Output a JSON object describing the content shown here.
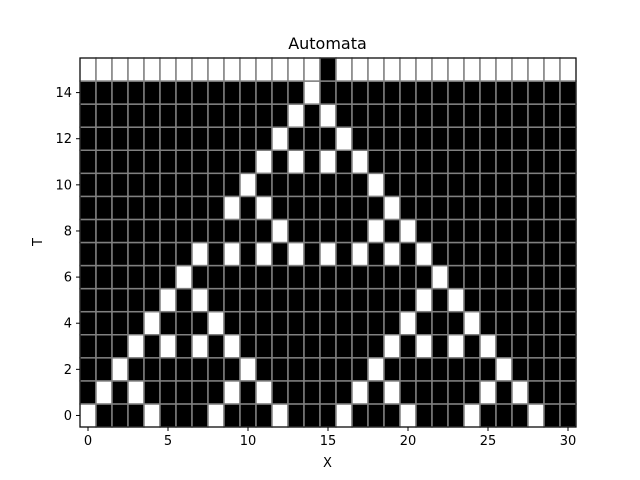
{
  "chart_data": {
    "type": "heatmap",
    "title": "Automata",
    "xlabel": "X",
    "ylabel": "T",
    "x_ticks": [
      0,
      5,
      10,
      15,
      20,
      25,
      30
    ],
    "y_ticks": [
      0,
      2,
      4,
      6,
      8,
      10,
      12,
      14
    ],
    "xlim": [
      -0.5,
      30.5
    ],
    "ylim": [
      -0.5,
      15.5
    ],
    "cell_colors": {
      "0": "#000000",
      "1": "#ffffff"
    },
    "grid_color": "#808080",
    "grid": [
      [
        1,
        0,
        0,
        0,
        1,
        0,
        0,
        0,
        1,
        0,
        0,
        0,
        1,
        0,
        0,
        0,
        1,
        0,
        0,
        0,
        1,
        0,
        0,
        0,
        1,
        0,
        0,
        0,
        1,
        0,
        0
      ],
      [
        0,
        1,
        0,
        1,
        0,
        0,
        0,
        0,
        0,
        1,
        0,
        1,
        0,
        0,
        0,
        0,
        0,
        1,
        0,
        1,
        0,
        0,
        0,
        0,
        0,
        1,
        0,
        1,
        0,
        0,
        0
      ],
      [
        0,
        0,
        1,
        0,
        0,
        0,
        0,
        0,
        0,
        0,
        1,
        0,
        0,
        0,
        0,
        0,
        0,
        0,
        1,
        0,
        0,
        0,
        0,
        0,
        0,
        0,
        1,
        0,
        0,
        0,
        0
      ],
      [
        0,
        0,
        0,
        1,
        0,
        1,
        0,
        1,
        0,
        1,
        0,
        0,
        0,
        0,
        0,
        0,
        0,
        0,
        0,
        1,
        0,
        1,
        0,
        1,
        0,
        1,
        0,
        0,
        0,
        0,
        0
      ],
      [
        0,
        0,
        0,
        0,
        1,
        0,
        0,
        0,
        1,
        0,
        0,
        0,
        0,
        0,
        0,
        0,
        0,
        0,
        0,
        0,
        1,
        0,
        0,
        0,
        1,
        0,
        0,
        0,
        0,
        0,
        0
      ],
      [
        0,
        0,
        0,
        0,
        0,
        1,
        0,
        1,
        0,
        0,
        0,
        0,
        0,
        0,
        0,
        0,
        0,
        0,
        0,
        0,
        0,
        1,
        0,
        1,
        0,
        0,
        0,
        0,
        0,
        0,
        0
      ],
      [
        0,
        0,
        0,
        0,
        0,
        0,
        1,
        0,
        0,
        0,
        0,
        0,
        0,
        0,
        0,
        0,
        0,
        0,
        0,
        0,
        0,
        0,
        1,
        0,
        0,
        0,
        0,
        0,
        0,
        0,
        0
      ],
      [
        0,
        0,
        0,
        0,
        0,
        0,
        0,
        1,
        0,
        1,
        0,
        1,
        0,
        1,
        0,
        1,
        0,
        1,
        0,
        1,
        0,
        1,
        0,
        0,
        0,
        0,
        0,
        0,
        0,
        0,
        0
      ],
      [
        0,
        0,
        0,
        0,
        0,
        0,
        0,
        0,
        0,
        0,
        0,
        0,
        1,
        0,
        0,
        0,
        0,
        0,
        1,
        0,
        1,
        0,
        0,
        0,
        0,
        0,
        0,
        0,
        0,
        0,
        0
      ],
      [
        0,
        0,
        0,
        0,
        0,
        0,
        0,
        0,
        0,
        1,
        0,
        1,
        0,
        0,
        0,
        0,
        0,
        0,
        0,
        1,
        0,
        0,
        0,
        0,
        0,
        0,
        0,
        0,
        0,
        0,
        0
      ],
      [
        0,
        0,
        0,
        0,
        0,
        0,
        0,
        0,
        0,
        0,
        1,
        0,
        0,
        0,
        0,
        0,
        0,
        0,
        1,
        0,
        0,
        0,
        0,
        0,
        0,
        0,
        0,
        0,
        0,
        0,
        0
      ],
      [
        0,
        0,
        0,
        0,
        0,
        0,
        0,
        0,
        0,
        0,
        0,
        1,
        0,
        1,
        0,
        1,
        0,
        1,
        0,
        0,
        0,
        0,
        0,
        0,
        0,
        0,
        0,
        0,
        0,
        0,
        0
      ],
      [
        0,
        0,
        0,
        0,
        0,
        0,
        0,
        0,
        0,
        0,
        0,
        0,
        1,
        0,
        0,
        0,
        1,
        0,
        0,
        0,
        0,
        0,
        0,
        0,
        0,
        0,
        0,
        0,
        0,
        0,
        0
      ],
      [
        0,
        0,
        0,
        0,
        0,
        0,
        0,
        0,
        0,
        0,
        0,
        0,
        0,
        1,
        0,
        1,
        0,
        0,
        0,
        0,
        0,
        0,
        0,
        0,
        0,
        0,
        0,
        0,
        0,
        0,
        0
      ],
      [
        0,
        0,
        0,
        0,
        0,
        0,
        0,
        0,
        0,
        0,
        0,
        0,
        0,
        0,
        1,
        0,
        0,
        0,
        0,
        0,
        0,
        0,
        0,
        0,
        0,
        0,
        0,
        0,
        0,
        0,
        0
      ],
      [
        1,
        1,
        1,
        1,
        1,
        1,
        1,
        1,
        1,
        1,
        1,
        1,
        1,
        1,
        1,
        0,
        1,
        1,
        1,
        1,
        1,
        1,
        1,
        1,
        1,
        1,
        1,
        1,
        1,
        1,
        1
      ]
    ]
  }
}
